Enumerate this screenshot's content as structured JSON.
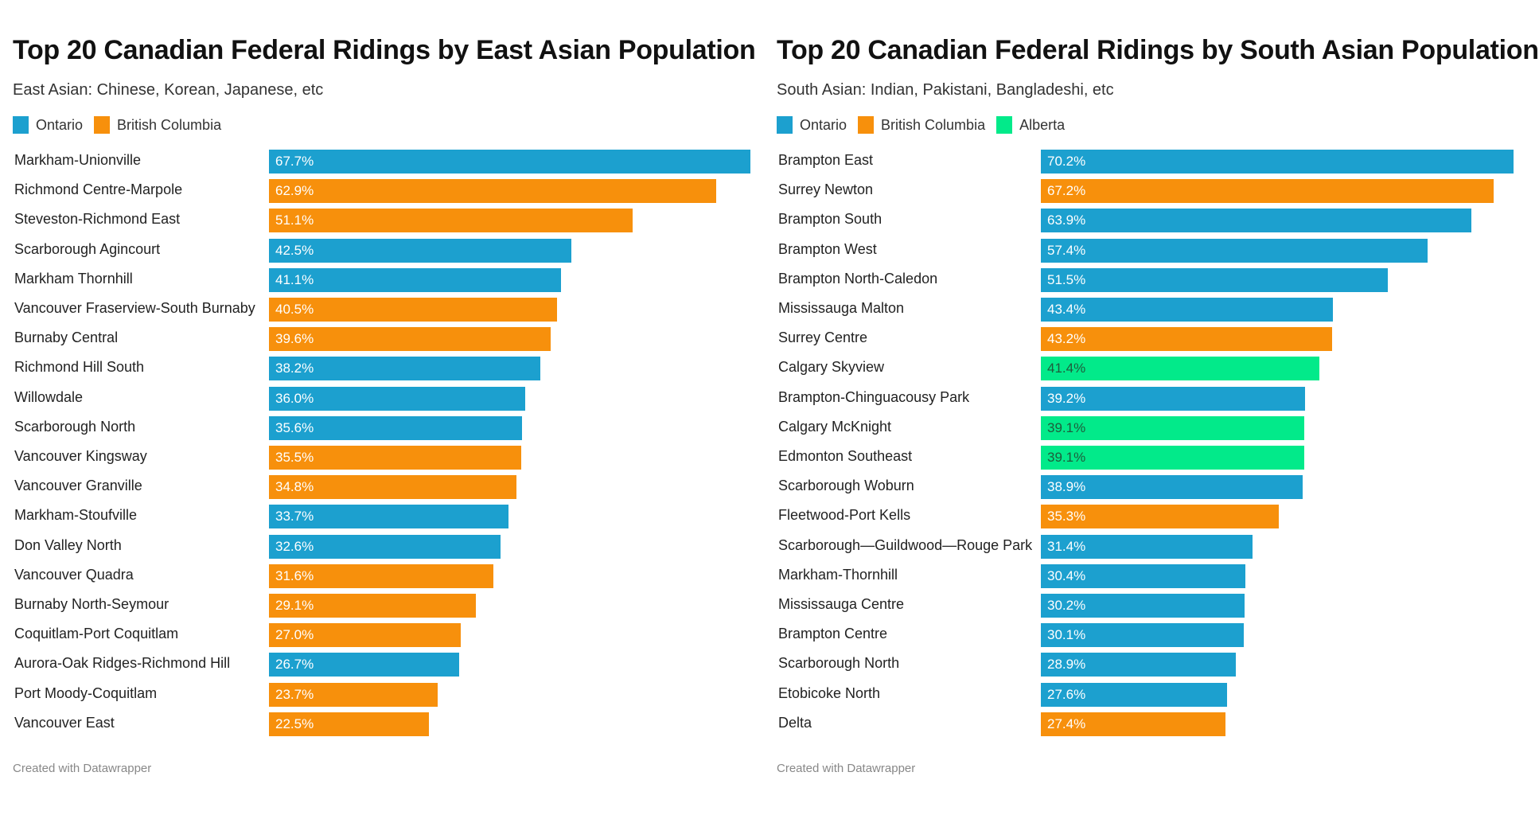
{
  "colors": {
    "Ontario": "#1ca0cf",
    "British Columbia": "#f7900c",
    "Alberta": "#02ea8a"
  },
  "chart_data": [
    {
      "type": "bar",
      "orientation": "horizontal",
      "title": "Top 20 Canadian Federal Ridings by East Asian Population",
      "subtitle": "East Asian: Chinese, Korean, Japanese, etc",
      "legend": [
        "Ontario",
        "British Columbia"
      ],
      "legend_placement": "top-left",
      "footer": "Created with Datawrapper",
      "categories": [
        "Markham-Unionville",
        "Richmond Centre-Marpole",
        "Steveston-Richmond East",
        "Scarborough Agincourt",
        "Markham Thornhill",
        "Vancouver Fraserview-South Burnaby",
        "Burnaby Central",
        "Richmond Hill South",
        "Willowdale",
        "Scarborough North",
        "Vancouver Kingsway",
        "Vancouver Granville",
        "Markham-Stoufville",
        "Don Valley North",
        "Vancouver Quadra",
        "Burnaby North-Seymour",
        "Coquitlam-Port Coquitlam",
        "Aurora-Oak Ridges-Richmond Hill",
        "Port Moody-Coquitlam",
        "Vancouver East"
      ],
      "values": [
        67.7,
        62.9,
        51.1,
        42.5,
        41.1,
        40.5,
        39.6,
        38.2,
        36.0,
        35.6,
        35.5,
        34.8,
        33.7,
        32.6,
        31.6,
        29.1,
        27.0,
        26.7,
        23.7,
        22.5
      ],
      "labels": [
        "67.7%",
        "62.9%",
        "51.1%",
        "42.5%",
        "41.1%",
        "40.5%",
        "39.6%",
        "38.2%",
        "36.0%",
        "35.6%",
        "35.5%",
        "34.8%",
        "33.7%",
        "32.6%",
        "31.6%",
        "29.1%",
        "27.0%",
        "26.7%",
        "23.7%",
        "22.5%"
      ],
      "groups": [
        "Ontario",
        "British Columbia",
        "British Columbia",
        "Ontario",
        "Ontario",
        "British Columbia",
        "British Columbia",
        "Ontario",
        "Ontario",
        "Ontario",
        "British Columbia",
        "British Columbia",
        "Ontario",
        "Ontario",
        "British Columbia",
        "British Columbia",
        "British Columbia",
        "Ontario",
        "British Columbia",
        "British Columbia"
      ],
      "unit": "%"
    },
    {
      "type": "bar",
      "orientation": "horizontal",
      "title": "Top 20 Canadian Federal Ridings by South Asian Population",
      "subtitle": "South Asian: Indian, Pakistani, Bangladeshi, etc",
      "legend": [
        "Ontario",
        "British Columbia",
        "Alberta"
      ],
      "legend_placement": "top-left",
      "footer": "Created with Datawrapper",
      "categories": [
        "Brampton East",
        "Surrey Newton",
        "Brampton South",
        "Brampton West",
        "Brampton North-Caledon",
        "Mississauga Malton",
        "Surrey Centre",
        "Calgary Skyview",
        "Brampton-Chinguacousy Park",
        "Calgary McKnight",
        "Edmonton Southeast",
        "Scarborough Woburn",
        "Fleetwood-Port Kells",
        "Scarborough—Guildwood—Rouge Park",
        "Markham-Thornhill",
        "Mississauga Centre",
        "Brampton Centre",
        "Scarborough North",
        "Etobicoke North",
        "Delta"
      ],
      "values": [
        70.2,
        67.2,
        63.9,
        57.4,
        51.5,
        43.4,
        43.2,
        41.4,
        39.2,
        39.1,
        39.1,
        38.9,
        35.3,
        31.4,
        30.4,
        30.2,
        30.1,
        28.9,
        27.6,
        27.4
      ],
      "labels": [
        "70.2%",
        "67.2%",
        "63.9%",
        "57.4%",
        "51.5%",
        "43.4%",
        "43.2%",
        "41.4%",
        "39.2%",
        "39.1%",
        "39.1%",
        "38.9%",
        "35.3%",
        "31.4%",
        "30.4%",
        "30.2%",
        "30.1%",
        "28.9%",
        "27.6%",
        "27.4%"
      ],
      "groups": [
        "Ontario",
        "British Columbia",
        "Ontario",
        "Ontario",
        "Ontario",
        "Ontario",
        "British Columbia",
        "Alberta",
        "Ontario",
        "Alberta",
        "Alberta",
        "Ontario",
        "British Columbia",
        "Ontario",
        "Ontario",
        "Ontario",
        "Ontario",
        "Ontario",
        "Ontario",
        "British Columbia"
      ],
      "unit": "%"
    }
  ]
}
